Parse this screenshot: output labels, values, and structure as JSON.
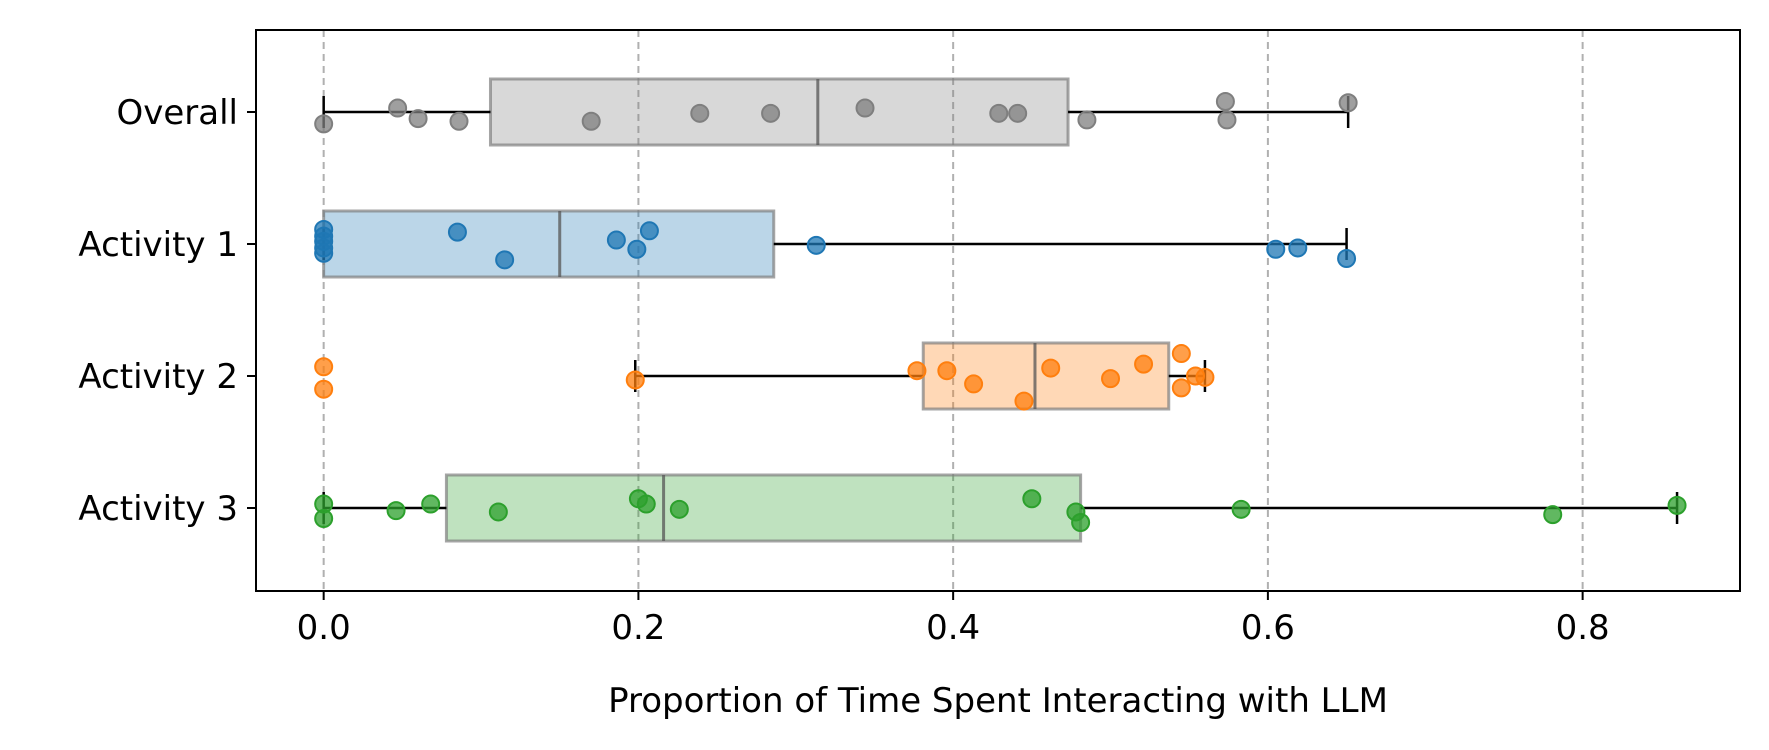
{
  "chart_data": {
    "type": "boxplot",
    "title": "",
    "xlabel": "Proportion of Time Spent Interacting with LLM",
    "ylabel": "",
    "xlim": [
      -0.043,
      0.9
    ],
    "x_ticks": [
      0.0,
      0.2,
      0.4,
      0.6,
      0.8
    ],
    "x_tick_labels": [
      "0.0",
      "0.2",
      "0.4",
      "0.6",
      "0.8"
    ],
    "grid": "vertical dashed at x ticks",
    "categories": [
      "Overall",
      "Activity 1",
      "Activity 2",
      "Activity 3"
    ],
    "series": [
      {
        "category": "Overall",
        "color": "#7f7f7f",
        "q1": 0.106,
        "median": 0.314,
        "q3": 0.473,
        "whisker_low": 0.0,
        "whisker_high": 0.651,
        "points": [
          [
            0.0,
            -0.09
          ],
          [
            0.047,
            0.03
          ],
          [
            0.06,
            -0.05
          ],
          [
            0.086,
            -0.07
          ],
          [
            0.17,
            -0.07
          ],
          [
            0.239,
            -0.01
          ],
          [
            0.284,
            -0.01
          ],
          [
            0.344,
            0.03
          ],
          [
            0.429,
            -0.01
          ],
          [
            0.441,
            -0.01
          ],
          [
            0.485,
            -0.06
          ],
          [
            0.573,
            0.08
          ],
          [
            0.574,
            -0.06
          ],
          [
            0.651,
            0.07
          ]
        ]
      },
      {
        "category": "Activity 1",
        "color": "#1f77b4",
        "q1": 0.0,
        "median": 0.15,
        "q3": 0.286,
        "whisker_low": 0.0,
        "whisker_high": 0.65,
        "points": [
          [
            0.0,
            0.11
          ],
          [
            0.0,
            0.06
          ],
          [
            0.0,
            0.02
          ],
          [
            0.0,
            -0.03
          ],
          [
            0.0,
            -0.07
          ],
          [
            0.085,
            0.09
          ],
          [
            0.115,
            -0.12
          ],
          [
            0.186,
            0.03
          ],
          [
            0.199,
            -0.04
          ],
          [
            0.207,
            0.1
          ],
          [
            0.313,
            -0.01
          ],
          [
            0.605,
            -0.04
          ],
          [
            0.619,
            -0.03
          ],
          [
            0.65,
            -0.11
          ]
        ]
      },
      {
        "category": "Activity 2",
        "color": "#ff7f0e",
        "q1": 0.381,
        "median": 0.452,
        "q3": 0.537,
        "whisker_low": 0.198,
        "whisker_high": 0.56,
        "points": [
          [
            0.0,
            0.07
          ],
          [
            0.0,
            -0.1
          ],
          [
            0.198,
            -0.03
          ],
          [
            0.377,
            0.04
          ],
          [
            0.396,
            0.04
          ],
          [
            0.413,
            -0.06
          ],
          [
            0.445,
            -0.19
          ],
          [
            0.462,
            0.06
          ],
          [
            0.5,
            -0.02
          ],
          [
            0.521,
            0.09
          ],
          [
            0.545,
            0.17
          ],
          [
            0.545,
            -0.09
          ],
          [
            0.554,
            0.0
          ],
          [
            0.56,
            -0.01
          ]
        ]
      },
      {
        "category": "Activity 3",
        "color": "#2ca02c",
        "q1": 0.078,
        "median": 0.216,
        "q3": 0.481,
        "whisker_low": 0.0,
        "whisker_high": 0.86,
        "points": [
          [
            0.0,
            0.03
          ],
          [
            0.0,
            -0.08
          ],
          [
            0.046,
            -0.02
          ],
          [
            0.068,
            0.03
          ],
          [
            0.111,
            -0.03
          ],
          [
            0.2,
            0.07
          ],
          [
            0.205,
            0.03
          ],
          [
            0.226,
            -0.01
          ],
          [
            0.45,
            0.07
          ],
          [
            0.478,
            -0.03
          ],
          [
            0.481,
            -0.11
          ],
          [
            0.583,
            -0.01
          ],
          [
            0.781,
            -0.05
          ],
          [
            0.86,
            0.02
          ]
        ]
      }
    ]
  }
}
